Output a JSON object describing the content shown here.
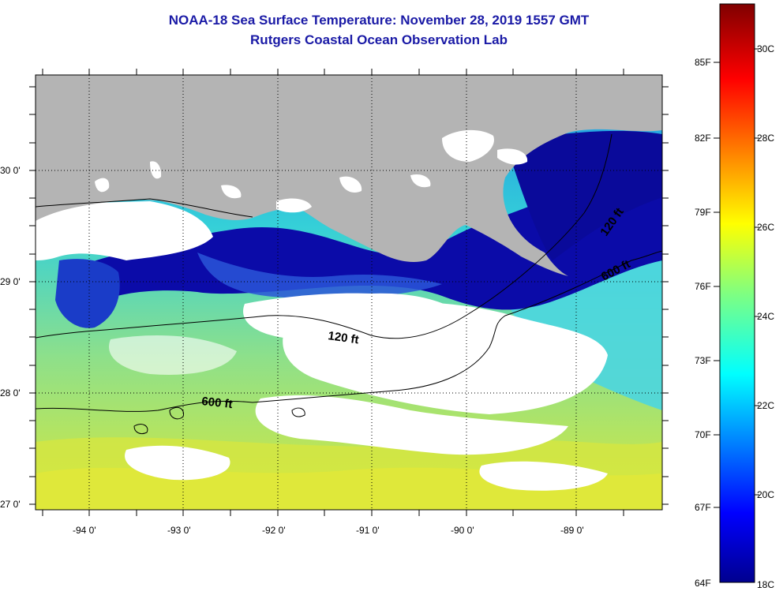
{
  "title": "NOAA-18 Sea Surface Temperature:  November 28, 2019 1557 GMT",
  "subtitle": "Rutgers Coastal Ocean Observation Lab",
  "axes": {
    "lat_ticks": [
      "30 0'",
      "29 0'",
      "28 0'",
      "27 0'"
    ],
    "lon_ticks": [
      "-94 0'",
      "-93 0'",
      "-92 0'",
      "-91 0'",
      "-90 0'",
      "-89 0'"
    ]
  },
  "contours": [
    {
      "label": "120 ft"
    },
    {
      "label": "600 ft"
    },
    {
      "label": "120 ft"
    },
    {
      "label": "600 ft"
    }
  ],
  "colorbar": {
    "f_labels": [
      "85F",
      "82F",
      "79F",
      "76F",
      "73F",
      "70F",
      "67F",
      "64F"
    ],
    "c_labels": [
      "30C",
      "28C",
      "26C",
      "24C",
      "22C",
      "20C",
      "18C"
    ]
  },
  "colors": {
    "title": "#1a1aa6",
    "land": "#b4b4b4",
    "cloud_no_data": "#ffffff",
    "cold": "#0a0a9a",
    "warm": "#dde830"
  }
}
